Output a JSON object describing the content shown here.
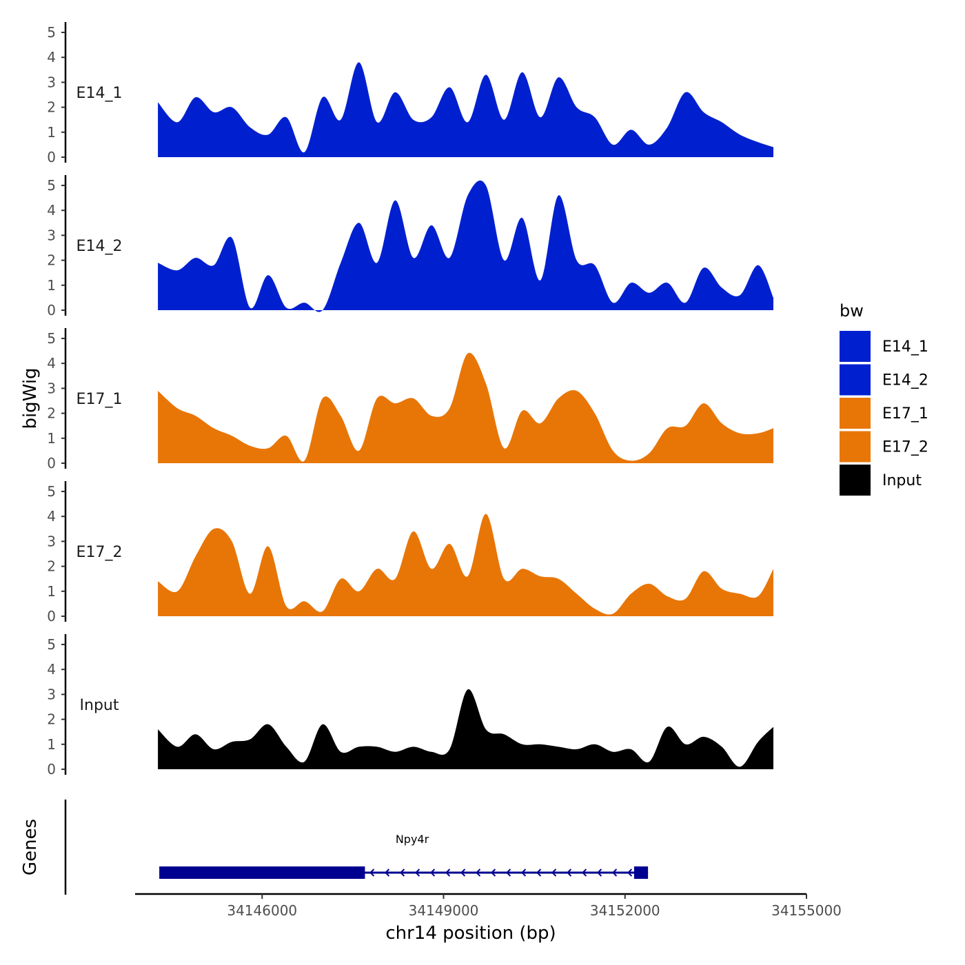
{
  "chart_data": {
    "type": "area",
    "title": "",
    "xlabel": "chr14 position (bp)",
    "ylabel": "bigWig",
    "genes_label": "Genes",
    "xlim": [
      34143900,
      34155000
    ],
    "x_ticks": [
      34146000,
      34149000,
      34152000,
      34155000
    ],
    "x_tick_labels": [
      "34146000",
      "34149000",
      "34152000",
      "34155000"
    ],
    "ylim": [
      0,
      5
    ],
    "y_ticks": [
      0,
      1,
      2,
      3,
      4,
      5
    ],
    "y_tick_labels": [
      "0",
      "1",
      "2",
      "3",
      "4",
      "5"
    ],
    "x": [
      34144300,
      34144600,
      34144900,
      34145200,
      34145500,
      34145800,
      34146100,
      34146400,
      34146700,
      34147000,
      34147300,
      34147600,
      34147900,
      34148200,
      34148500,
      34148800,
      34149100,
      34149400,
      34149700,
      34150000,
      34150300,
      34150600,
      34150900,
      34151200,
      34151500,
      34151800,
      34152100,
      34152400,
      34152700,
      34153000,
      34153300,
      34153600,
      34153900,
      34154200,
      34154500
    ],
    "series": [
      {
        "name": "E14_1",
        "color": "#0020D0",
        "values": [
          2.2,
          1.4,
          2.4,
          1.8,
          2.0,
          1.2,
          0.9,
          1.6,
          0.2,
          2.4,
          1.5,
          3.8,
          1.4,
          2.6,
          1.5,
          1.6,
          2.8,
          1.4,
          3.3,
          1.5,
          3.4,
          1.6,
          3.2,
          2.0,
          1.6,
          0.5,
          1.1,
          0.5,
          1.2,
          2.6,
          1.8,
          1.4,
          0.9,
          0.6,
          0.4
        ]
      },
      {
        "name": "E14_2",
        "color": "#0020D0",
        "values": [
          1.9,
          1.6,
          2.1,
          1.8,
          2.9,
          0.1,
          1.4,
          0.1,
          0.3,
          0.0,
          1.9,
          3.5,
          1.9,
          4.4,
          2.1,
          3.4,
          2.1,
          4.6,
          5.0,
          2.0,
          3.7,
          1.2,
          4.6,
          2.0,
          1.8,
          0.3,
          1.1,
          0.7,
          1.1,
          0.3,
          1.7,
          0.9,
          0.6,
          1.8,
          0.5
        ]
      },
      {
        "name": "E17_1",
        "color": "#E87607",
        "values": [
          2.9,
          2.2,
          1.9,
          1.4,
          1.1,
          0.7,
          0.6,
          1.1,
          0.1,
          2.6,
          1.9,
          0.5,
          2.6,
          2.4,
          2.6,
          1.9,
          2.2,
          4.4,
          3.2,
          0.6,
          2.1,
          1.6,
          2.6,
          2.9,
          2.0,
          0.5,
          0.1,
          0.4,
          1.4,
          1.5,
          2.4,
          1.6,
          1.2,
          1.2,
          1.4
        ]
      },
      {
        "name": "E17_2",
        "color": "#E87607",
        "values": [
          1.4,
          1.0,
          2.4,
          3.5,
          3.0,
          0.9,
          2.8,
          0.4,
          0.6,
          0.2,
          1.5,
          1.0,
          1.9,
          1.5,
          3.4,
          1.9,
          2.9,
          1.6,
          4.1,
          1.5,
          1.9,
          1.6,
          1.5,
          0.9,
          0.3,
          0.1,
          0.9,
          1.3,
          0.8,
          0.7,
          1.8,
          1.1,
          0.9,
          0.8,
          1.9
        ]
      },
      {
        "name": "Input",
        "color": "#000000",
        "values": [
          1.6,
          0.9,
          1.4,
          0.8,
          1.1,
          1.2,
          1.8,
          0.9,
          0.3,
          1.8,
          0.7,
          0.9,
          0.9,
          0.7,
          0.9,
          0.7,
          0.8,
          3.2,
          1.6,
          1.4,
          1.0,
          1.0,
          0.9,
          0.8,
          1.0,
          0.7,
          0.8,
          0.3,
          1.7,
          1.0,
          1.3,
          0.9,
          0.1,
          1.1,
          1.7
        ]
      }
    ],
    "legend": {
      "title": "bw",
      "position": "right",
      "entries": [
        {
          "label": "E14_1",
          "color": "#0020D0"
        },
        {
          "label": "E14_2",
          "color": "#0020D0"
        },
        {
          "label": "E17_1",
          "color": "#E87607"
        },
        {
          "label": "E17_2",
          "color": "#E87607"
        },
        {
          "label": "Input",
          "color": "#000000"
        }
      ]
    },
    "gene": {
      "name": "Npy4r",
      "strand": "-",
      "start": 34144300,
      "end": 34152380,
      "exons": [
        [
          34144300,
          34147700
        ],
        [
          34152150,
          34152380
        ]
      ],
      "color": "#000090"
    }
  }
}
